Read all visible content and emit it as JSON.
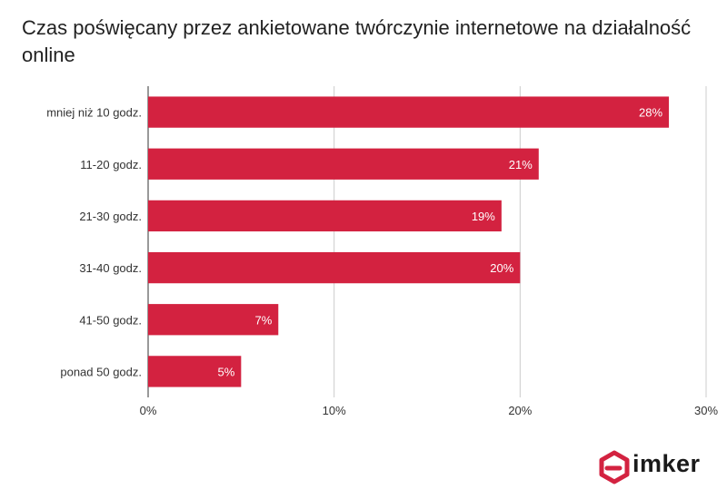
{
  "chart_data": {
    "type": "bar",
    "orientation": "horizontal",
    "title": "Czas poświęcany przez ankietowane twórczynie internetowe na działalność online",
    "categories": [
      "mniej niż 10 godz.",
      "11-20 godz.",
      "21-30 godz.",
      "31-40 godz.",
      "41-50 godz.",
      "ponad 50 godz."
    ],
    "values": [
      28,
      21,
      19,
      20,
      7,
      5
    ],
    "value_labels": [
      "28%",
      "21%",
      "19%",
      "20%",
      "7%",
      "5%"
    ],
    "xlim": [
      0,
      30
    ],
    "x_ticks": [
      0,
      10,
      20,
      30
    ],
    "x_tick_labels": [
      "0%",
      "10%",
      "20%",
      "30%"
    ],
    "grid": true,
    "bar_color": "#d32240"
  },
  "logo": {
    "text": "imker",
    "color": "#d32240"
  }
}
